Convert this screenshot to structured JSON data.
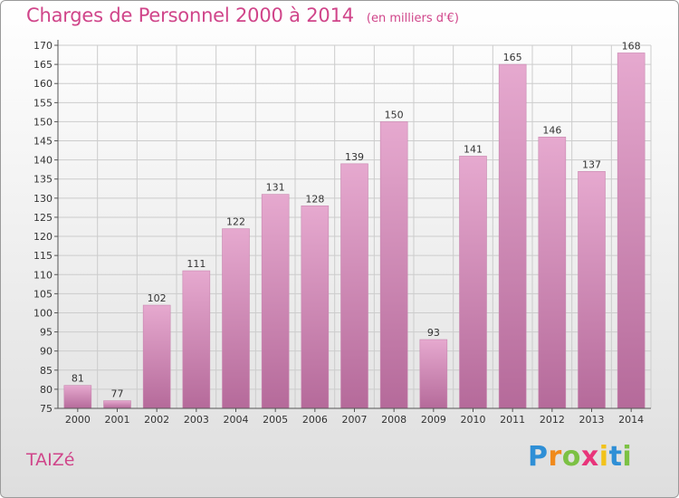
{
  "title": "Charges de Personnel 2000 à 2014",
  "subtitle": "(en milliers d'€)",
  "commune": "TAIZé",
  "logo": {
    "letters": [
      "P",
      "r",
      "o",
      "x",
      "i",
      "t",
      "i"
    ]
  },
  "colors": {
    "accent": "#d0458a",
    "bar_top": "#e6a9cf",
    "bar_bottom": "#b56a9a",
    "grid": "#cccccc"
  },
  "chart_data": {
    "type": "bar",
    "categories": [
      "2000",
      "2001",
      "2002",
      "2003",
      "2004",
      "2005",
      "2006",
      "2007",
      "2008",
      "2009",
      "2010",
      "2011",
      "2012",
      "2013",
      "2014"
    ],
    "values": [
      81,
      77,
      102,
      111,
      122,
      131,
      128,
      139,
      150,
      93,
      141,
      165,
      146,
      137,
      168
    ],
    "ylim": [
      75,
      170
    ],
    "yticks": [
      75,
      80,
      85,
      90,
      95,
      100,
      105,
      110,
      115,
      120,
      125,
      130,
      135,
      140,
      145,
      150,
      155,
      160,
      165,
      170
    ],
    "grid": true
  }
}
